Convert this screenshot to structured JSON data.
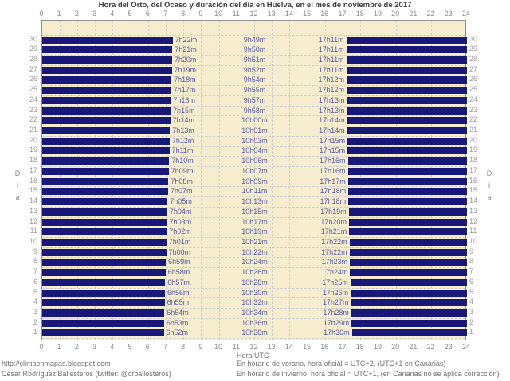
{
  "title": "Hora del Orto, del Ocaso y duración del día en Huelva, en el mes de noviembre de 2017",
  "colors": {
    "plot_bg": "#F5EDCD",
    "bar": "#181878",
    "value_label": "#5A5AA6",
    "axis_text": "#8A8A8A",
    "day_text": "#9C9C9C",
    "grid": "#D0D0D0",
    "border": "#909090",
    "title_text": "#3C3C3C",
    "footer_text": "#6F6F6F"
  },
  "axis": {
    "x_ticks": [
      0,
      1,
      2,
      3,
      4,
      5,
      6,
      7,
      8,
      9,
      10,
      11,
      12,
      13,
      14,
      15,
      16,
      17,
      18,
      19,
      20,
      21,
      22,
      23,
      24
    ],
    "x_label": "Hora UTC",
    "y_label": "Día"
  },
  "footer": {
    "left_line1": "http://climaenmapas.blogspot.com",
    "left_line2": "César Rodríguez Ballesteros (twitter: @crballesteros)",
    "right_line1": "En horario de verano, hora oficial = UTC+2, (UTC+1 en Canarias)",
    "right_line2": "En horario de invierno, hora oficial = UTC+1, (en Canarias no se aplica corrección)"
  },
  "chart_data": {
    "type": "bar",
    "subtype": "night-bands-per-day",
    "title": "Hora del Orto, del Ocaso y duración del día en Huelva, en el mes de noviembre de 2017",
    "xlabel": "Hora UTC",
    "ylabel": "Día",
    "xlim": [
      0,
      24
    ],
    "grid": true,
    "note": "Each day row shows night as dark bars (00:00→sunrise and sunset→24:00); labels give sunrise (orto), day length (duración) centered at 12h, and sunset (ocaso).",
    "days": [
      {
        "day": 30,
        "sunrise": "7h22m",
        "duration": "9h49m",
        "sunset": "17h11m"
      },
      {
        "day": 29,
        "sunrise": "7h21m",
        "duration": "9h50m",
        "sunset": "17h11m"
      },
      {
        "day": 28,
        "sunrise": "7h20m",
        "duration": "9h51m",
        "sunset": "17h11m"
      },
      {
        "day": 27,
        "sunrise": "7h19m",
        "duration": "9h52m",
        "sunset": "17h11m"
      },
      {
        "day": 26,
        "sunrise": "7h18m",
        "duration": "9h54m",
        "sunset": "17h12m"
      },
      {
        "day": 25,
        "sunrise": "7h17m",
        "duration": "9h55m",
        "sunset": "17h12m"
      },
      {
        "day": 24,
        "sunrise": "7h16m",
        "duration": "9h57m",
        "sunset": "17h13m"
      },
      {
        "day": 23,
        "sunrise": "7h15m",
        "duration": "9h58m",
        "sunset": "17h13m"
      },
      {
        "day": 22,
        "sunrise": "7h14m",
        "duration": "10h00m",
        "sunset": "17h14m"
      },
      {
        "day": 21,
        "sunrise": "7h13m",
        "duration": "10h01m",
        "sunset": "17h14m"
      },
      {
        "day": 20,
        "sunrise": "7h12m",
        "duration": "10h03m",
        "sunset": "17h15m"
      },
      {
        "day": 19,
        "sunrise": "7h11m",
        "duration": "10h04m",
        "sunset": "17h15m"
      },
      {
        "day": 18,
        "sunrise": "7h10m",
        "duration": "10h06m",
        "sunset": "17h16m"
      },
      {
        "day": 17,
        "sunrise": "7h09m",
        "duration": "10h07m",
        "sunset": "17h16m"
      },
      {
        "day": 16,
        "sunrise": "7h08m",
        "duration": "10h09m",
        "sunset": "17h17m"
      },
      {
        "day": 15,
        "sunrise": "7h07m",
        "duration": "10h11m",
        "sunset": "17h18m"
      },
      {
        "day": 14,
        "sunrise": "7h05m",
        "duration": "10h13m",
        "sunset": "17h18m"
      },
      {
        "day": 13,
        "sunrise": "7h04m",
        "duration": "10h15m",
        "sunset": "17h19m"
      },
      {
        "day": 12,
        "sunrise": "7h03m",
        "duration": "10h17m",
        "sunset": "17h20m"
      },
      {
        "day": 11,
        "sunrise": "7h02m",
        "duration": "10h19m",
        "sunset": "17h21m"
      },
      {
        "day": 10,
        "sunrise": "7h01m",
        "duration": "10h21m",
        "sunset": "17h22m"
      },
      {
        "day": 9,
        "sunrise": "7h00m",
        "duration": "10h22m",
        "sunset": "17h22m"
      },
      {
        "day": 8,
        "sunrise": "6h59m",
        "duration": "10h24m",
        "sunset": "17h23m"
      },
      {
        "day": 7,
        "sunrise": "6h58m",
        "duration": "10h26m",
        "sunset": "17h24m"
      },
      {
        "day": 6,
        "sunrise": "6h57m",
        "duration": "10h28m",
        "sunset": "17h25m"
      },
      {
        "day": 5,
        "sunrise": "6h56m",
        "duration": "10h30m",
        "sunset": "17h26m"
      },
      {
        "day": 4,
        "sunrise": "6h55m",
        "duration": "10h32m",
        "sunset": "17h27m"
      },
      {
        "day": 3,
        "sunrise": "6h54m",
        "duration": "10h34m",
        "sunset": "17h28m"
      },
      {
        "day": 2,
        "sunrise": "6h53m",
        "duration": "10h36m",
        "sunset": "17h29m"
      },
      {
        "day": 1,
        "sunrise": "6h52m",
        "duration": "10h38m",
        "sunset": "17h30m"
      }
    ]
  }
}
